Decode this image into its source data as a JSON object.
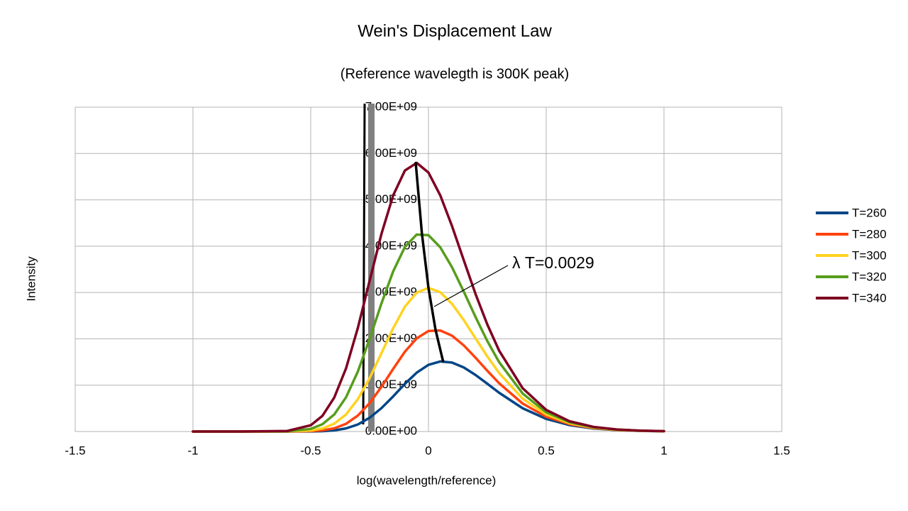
{
  "chart_data": {
    "type": "line",
    "title": "Wein's Displacement Law",
    "subtitle": "(Reference wavelegth is 300K peak)",
    "x_label": "log(wavelength/reference)",
    "y_label": "Intensity",
    "xlim": [
      -1.5,
      1.5
    ],
    "xticks": [
      -1.5,
      -1,
      -0.5,
      0,
      0.5,
      1,
      1.5
    ],
    "ylim": [
      0,
      7000000000.0
    ],
    "yticks": [
      {
        "value": 0,
        "label": "0.00E+00"
      },
      {
        "value": 1000000000.0,
        "label": "1.00E+09"
      },
      {
        "value": 2000000000.0,
        "label": "2.00E+09"
      },
      {
        "value": 3000000000.0,
        "label": "3.00E+09"
      },
      {
        "value": 4000000000.0,
        "label": "4.00E+09"
      },
      {
        "value": 5000000000.0,
        "label": "5.00E+09"
      },
      {
        "value": 6000000000.0,
        "label": "6.00E+09"
      },
      {
        "value": 7000000000.0,
        "label": "7.00E+09"
      }
    ],
    "grid": true,
    "legend": "right",
    "x": [
      -1,
      -0.8,
      -0.6,
      -0.5,
      -0.45,
      -0.4,
      -0.35,
      -0.3,
      -0.25,
      -0.2,
      -0.15,
      -0.1,
      -0.05,
      0,
      0.05,
      0.1,
      0.15,
      0.2,
      0.25,
      0.3,
      0.4,
      0.5,
      0.6,
      0.7,
      0.8,
      0.9,
      1
    ],
    "series": [
      {
        "name": "T=260",
        "color": "#004586",
        "values": [
          0,
          0,
          50000.0,
          1900000.0,
          7700000.0,
          24800000.0,
          66600000.0,
          151600000.0,
          296000000.0,
          502500000.0,
          757000000.0,
          1029000000.0,
          1270000000.0,
          1439000000.0,
          1512000000.0,
          1488000000.0,
          1382000000.0,
          1220000000.0,
          1031000000.0,
          837000000.0,
          502000000.0,
          272000000.0,
          137200000.0,
          65300000.0,
          29800000.0,
          13200000.0,
          5700000.0
        ]
      },
      {
        "name": "T=280",
        "color": "#ff420e",
        "values": [
          0,
          0,
          280000.0,
          6900000.0,
          24200000.0,
          69300000.0,
          166400000.0,
          343000000.0,
          612000000.0,
          961000000.0,
          1350000000.0,
          1723000000.0,
          2010000000.0,
          2169000000.0,
          2181000000.0,
          2068000000.0,
          1858000000.0,
          1592000000.0,
          1311000000.0,
          1042000000.0,
          603000000.0,
          319000000.0,
          157300000.0,
          73800000.0,
          33300000.0,
          14600000.0,
          6300000.0
        ]
      },
      {
        "name": "T=300",
        "color": "#ffd320",
        "values": [
          0,
          0,
          1150000.0,
          21200000.0,
          65900000.0,
          169000000.0,
          368500000.0,
          696000000.0,
          1150000000.0,
          1686000000.0,
          2228000000.0,
          2695000000.0,
          2997000000.0,
          3100000000.0,
          3006000000.0,
          2755000000.0,
          2404000000.0,
          2010000000.0,
          1620000000.0,
          1263000000.0,
          709000000.0,
          366000000.0,
          177800000.0,
          82400000.0,
          36900000.0,
          16100000.0,
          6900000.0
        ]
      },
      {
        "name": "T=320",
        "color": "#579d1c",
        "values": [
          0,
          0,
          3950000.0,
          56500000.0,
          157600000.0,
          368000000.0,
          738000000.0,
          1292000000.0,
          1995000000.0,
          2759000000.0,
          3454000000.0,
          3985000000.0,
          4251000000.0,
          4237000000.0,
          3977000000.0,
          3546000000.0,
          3019000000.0,
          2470000000.0,
          1951000000.0,
          1498000000.0,
          820000000.0,
          415000000.0,
          198700000.0,
          91100000.0,
          40400000.0,
          17500000.0,
          7400000.0
        ]
      },
      {
        "name": "T=340",
        "color": "#7e0021",
        "values": [
          0,
          0,
          11700000.0,
          134300000.0,
          339600000.0,
          733000000.0,
          1363000000.0,
          2232000000.0,
          3250000000.0,
          4258000000.0,
          5095000000.0,
          5633000000.0,
          5797000000.0,
          5589000000.0,
          5098000000.0,
          4434000000.0,
          3696000000.0,
          2966000000.0,
          2309000000.0,
          1746000000.0,
          934000000.0,
          466000000.0,
          220000000.0,
          99800000.0,
          44000000.0,
          19000000.0,
          8000000.0
        ]
      }
    ],
    "peak_line": {
      "label": "λ T=0.0029",
      "color": "#000000",
      "x": [
        0.062,
        0.03,
        0,
        -0.028,
        -0.054
      ],
      "values": [
        1516000000.0,
        2195000000.0,
        3100000000.0,
        4282000000.0,
        5796000000.0
      ]
    }
  }
}
